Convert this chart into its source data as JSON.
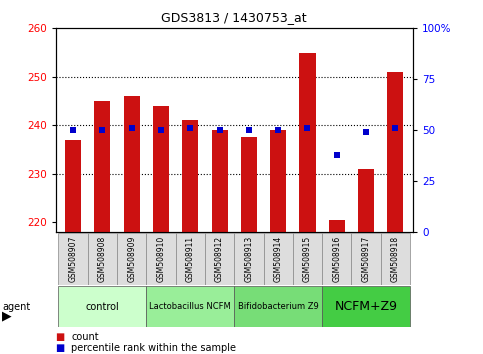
{
  "title": "GDS3813 / 1430753_at",
  "samples": [
    "GSM508907",
    "GSM508908",
    "GSM508909",
    "GSM508910",
    "GSM508911",
    "GSM508912",
    "GSM508913",
    "GSM508914",
    "GSM508915",
    "GSM508916",
    "GSM508917",
    "GSM508918"
  ],
  "counts": [
    237,
    245,
    246,
    244,
    241,
    239,
    237.5,
    239,
    255,
    220.5,
    231,
    251
  ],
  "percentiles": [
    50,
    50,
    51,
    50,
    51,
    50,
    50,
    50,
    51,
    38,
    49,
    51
  ],
  "ylim_left": [
    218,
    260
  ],
  "ylim_right": [
    0,
    100
  ],
  "yticks_left": [
    220,
    230,
    240,
    250,
    260
  ],
  "yticks_right": [
    0,
    25,
    50,
    75,
    100
  ],
  "bar_color": "#cc1111",
  "marker_color": "#0000cc",
  "agent_groups": [
    {
      "label": "control",
      "start": 0,
      "end": 2,
      "color": "#ccffcc"
    },
    {
      "label": "Lactobacillus NCFM",
      "start": 3,
      "end": 5,
      "color": "#99ee99"
    },
    {
      "label": "Bifidobacterium Z9",
      "start": 6,
      "end": 8,
      "color": "#77dd77"
    },
    {
      "label": "NCFM+Z9",
      "start": 9,
      "end": 11,
      "color": "#44cc44"
    }
  ],
  "legend_count_label": "count",
  "legend_pct_label": "percentile rank within the sample",
  "agent_label": "agent",
  "bar_bottom": 218,
  "gridlines": [
    230,
    240,
    250
  ],
  "group_fontsize": [
    7,
    6,
    6,
    9
  ],
  "group_ranges": [
    [
      0,
      2
    ],
    [
      3,
      5
    ],
    [
      6,
      8
    ],
    [
      9,
      11
    ]
  ]
}
